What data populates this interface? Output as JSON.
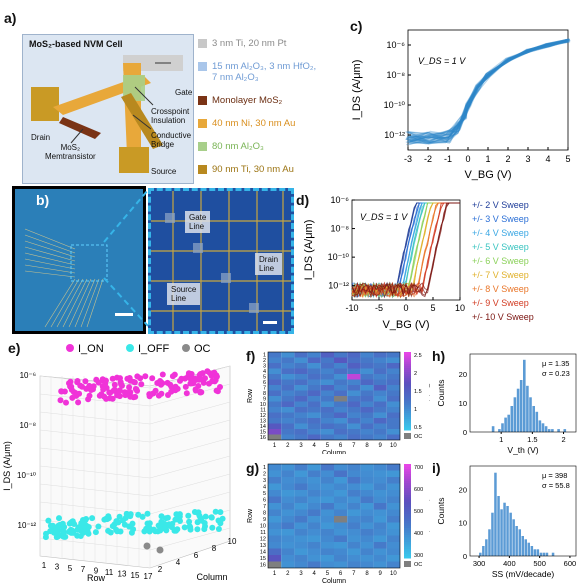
{
  "panel_labels": {
    "a": "a)",
    "b": "b)",
    "c": "c)",
    "d": "d)",
    "e": "e)",
    "f": "f)",
    "g": "g)",
    "h": "h)",
    "i": "i)"
  },
  "panel_a": {
    "title": "MoS₂-based NVM Cell",
    "labels": {
      "gate": "Gate",
      "drain": "Drain",
      "crosspoint": "Crosspoint",
      "insulation": "Insulation",
      "conductive": "Conductive",
      "bridge": "Bridge",
      "memtransistor_1": "MoS₂",
      "memtransistor_2": "Memtransistor",
      "source": "Source"
    },
    "materials": [
      {
        "lines": [
          "3 nm Ti, 20 nm Pt"
        ],
        "color": "#c8c8c8",
        "text_color": "#8a8a8a"
      },
      {
        "lines": [
          "15 nm Al₂O₃, 3 nm HfO₂,",
          "7 nm Al₂O₃"
        ],
        "color": "#a9c6ea",
        "text_color": "#6f9bd4"
      },
      {
        "lines": [
          "Monolayer MoS₂"
        ],
        "color": "#7a3315",
        "text_color": "#6b2e12"
      },
      {
        "lines": [
          "40 nm Ni, 30 nm Au"
        ],
        "color": "#e8a83a",
        "text_color": "#d98f1e"
      },
      {
        "lines": [
          "80 nm Al₂O₃"
        ],
        "color": "#a8cf8a",
        "text_color": "#79b455"
      },
      {
        "lines": [
          "90 nm Ti, 30 nm Au"
        ],
        "color": "#b8891f",
        "text_color": "#9c7413"
      }
    ]
  },
  "panel_b": {
    "labels": {
      "gate_1": "Gate",
      "gate_2": "Line",
      "drain_1": "Drain",
      "drain_2": "Line",
      "source_1": "Source",
      "source_2": "Line"
    }
  },
  "chart_data": [
    {
      "id": "c",
      "type": "line",
      "title": "",
      "xlabel": "V_BG (V)",
      "ylabel": "I_DS (A/μm)",
      "annotation": "V_DS = 1 V",
      "xlim": [
        -3,
        5
      ],
      "ylim_log10": [
        -13,
        -5
      ],
      "xticks": [
        "-3",
        "-2",
        "-1",
        "0",
        "1",
        "2",
        "3",
        "4",
        "5"
      ],
      "yticks": [
        "10⁻⁶",
        "10⁻⁸",
        "10⁻¹⁰",
        "10⁻¹²"
      ],
      "series": [
        {
          "x": [
            -3,
            -2,
            -1,
            -0.5,
            -0.2,
            0,
            0.5,
            1,
            2,
            3,
            4,
            5
          ],
          "log10_y": [
            -12.2,
            -12.2,
            -12.1,
            -11.5,
            -10.8,
            -10.0,
            -8.8,
            -8.0,
            -7.0,
            -6.4,
            -6.0,
            -5.7
          ]
        }
      ],
      "color": "#2f86c8"
    },
    {
      "id": "d",
      "type": "line",
      "title": "",
      "xlabel": "V_BG (V)",
      "ylabel": "I_DS (A/μm)",
      "annotation": "V_DS = 1 V",
      "xlim": [
        -10,
        10
      ],
      "ylim_log10": [
        -13,
        -6
      ],
      "xticks": [
        "-10",
        "-5",
        "0",
        "5",
        "10"
      ],
      "yticks": [
        "10⁻⁶",
        "10⁻⁸",
        "10⁻¹⁰",
        "10⁻¹²"
      ],
      "series": [
        {
          "name": "+/- 2 V Sweep",
          "color": "#1f3d99",
          "vth": -1.8
        },
        {
          "name": "+/- 3 V Sweep",
          "color": "#2b6fd6",
          "vth": -1.3
        },
        {
          "name": "+/- 4 V Sweep",
          "color": "#3aa7e3",
          "vth": -0.8
        },
        {
          "name": "+/- 5 V Sweep",
          "color": "#39c4c0",
          "vth": -0.3
        },
        {
          "name": "+/- 6 V Sweep",
          "color": "#8bd15a",
          "vth": 0.4
        },
        {
          "name": "+/- 7 V Sweep",
          "color": "#e0b12b",
          "vth": 1.2
        },
        {
          "name": "+/- 8 V Sweep",
          "color": "#e9762a",
          "vth": 2.1
        },
        {
          "name": "+/- 9 V Sweep",
          "color": "#d23b22",
          "vth": 3.0
        },
        {
          "name": "+/- 10 V Sweep",
          "color": "#7a1410",
          "vth": 4.0
        }
      ]
    },
    {
      "id": "e",
      "type": "scatter",
      "legend": [
        "I_ON",
        "I_OFF",
        "OC"
      ],
      "legend_colors": [
        "#f033d8",
        "#3ae8e8",
        "#8a8a8a"
      ],
      "zlabel": "I_DS (A/μm)",
      "xlabel": "Row",
      "ylabel": "Column",
      "zticks": [
        "10⁻⁶",
        "10⁻⁸",
        "10⁻¹⁰",
        "10⁻¹²"
      ],
      "xticks": [
        "1",
        "3",
        "5",
        "7",
        "9",
        "11",
        "13",
        "15",
        "17"
      ],
      "yticks": [
        "2",
        "4",
        "6",
        "8",
        "10"
      ],
      "ion_log10_approx": -6.4,
      "ioff_log10_approx": -12.4
    },
    {
      "id": "f",
      "type": "heatmap",
      "xlabel": "Column",
      "ylabel": "Row",
      "colorbar_label": "V_th (V)",
      "colorbar_ticks": [
        "2.5",
        "2",
        "1.5",
        "1",
        "0.5"
      ],
      "colorbar_range": [
        0.5,
        2.5
      ],
      "oc_label": "OC",
      "columns": [
        "1",
        "2",
        "3",
        "4",
        "5",
        "6",
        "7",
        "8",
        "9",
        "10"
      ],
      "rows": [
        "1",
        "2",
        "3",
        "4",
        "5",
        "6",
        "7",
        "8",
        "9",
        "10",
        "11",
        "12",
        "13",
        "14",
        "15",
        "16"
      ],
      "values": [
        [
          1.2,
          1.0,
          1.3,
          1.1,
          1.5,
          1.2,
          1.4,
          1.1,
          1.3,
          1.2
        ],
        [
          1.1,
          1.2,
          1.0,
          1.4,
          1.2,
          1.6,
          1.3,
          1.2,
          1.1,
          1.0
        ],
        [
          1.3,
          1.1,
          1.2,
          1.0,
          1.3,
          1.1,
          1.5,
          1.3,
          1.2,
          1.4
        ],
        [
          1.0,
          1.3,
          1.4,
          1.2,
          1.1,
          1.3,
          1.2,
          1.0,
          1.3,
          1.1
        ],
        [
          1.2,
          1.0,
          1.1,
          1.3,
          1.2,
          1.0,
          2.3,
          1.2,
          1.1,
          1.2
        ],
        [
          1.4,
          1.2,
          1.3,
          1.1,
          1.0,
          1.2,
          1.1,
          1.4,
          1.2,
          1.3
        ],
        [
          1.1,
          1.3,
          1.0,
          1.2,
          1.4,
          1.1,
          1.3,
          1.0,
          1.5,
          1.1
        ],
        [
          1.3,
          1.1,
          1.2,
          1.4,
          1.1,
          1.3,
          1.0,
          1.2,
          1.1,
          1.2
        ],
        [
          1.0,
          1.2,
          1.4,
          1.1,
          1.2,
          -1,
          1.2,
          1.3,
          1.0,
          1.3
        ],
        [
          1.2,
          1.4,
          1.1,
          1.3,
          1.0,
          1.2,
          1.4,
          1.1,
          1.3,
          1.0
        ],
        [
          1.1,
          1.0,
          1.3,
          1.2,
          1.3,
          1.1,
          1.2,
          1.4,
          1.2,
          1.1
        ],
        [
          1.3,
          1.2,
          1.1,
          1.0,
          1.2,
          1.4,
          1.1,
          1.2,
          1.0,
          1.3
        ],
        [
          1.2,
          1.1,
          1.2,
          1.3,
          1.1,
          1.0,
          1.3,
          1.1,
          1.4,
          1.2
        ],
        [
          1.6,
          1.3,
          1.0,
          1.2,
          1.3,
          1.2,
          1.0,
          1.3,
          1.1,
          1.2
        ],
        [
          1.9,
          1.2,
          1.3,
          1.1,
          1.0,
          1.3,
          1.2,
          1.1,
          1.2,
          1.0
        ],
        [
          -1,
          1.1,
          1.2,
          1.4,
          1.2,
          1.1,
          1.3,
          1.2,
          1.1,
          1.3
        ]
      ]
    },
    {
      "id": "g",
      "type": "heatmap",
      "xlabel": "Column",
      "ylabel": "Row",
      "colorbar_label": "SS (mV/decade)",
      "colorbar_ticks": [
        "700",
        "600",
        "500",
        "400",
        "300"
      ],
      "colorbar_range": [
        250,
        720
      ],
      "oc_label": "OC",
      "columns": [
        "1",
        "2",
        "3",
        "4",
        "5",
        "6",
        "7",
        "8",
        "9",
        "10"
      ],
      "rows": [
        "1",
        "2",
        "3",
        "4",
        "5",
        "6",
        "7",
        "8",
        "9",
        "10",
        "11",
        "12",
        "13",
        "14",
        "15",
        "16"
      ],
      "values": [
        [
          380,
          360,
          400,
          350,
          420,
          370,
          390,
          360,
          380,
          410
        ],
        [
          360,
          390,
          350,
          400,
          370,
          430,
          380,
          370,
          360,
          350
        ],
        [
          400,
          370,
          380,
          360,
          390,
          350,
          420,
          380,
          370,
          400
        ],
        [
          350,
          380,
          410,
          370,
          360,
          380,
          370,
          350,
          390,
          360
        ],
        [
          380,
          350,
          360,
          390,
          370,
          350,
          400,
          380,
          360,
          370
        ],
        [
          420,
          370,
          390,
          360,
          350,
          380,
          360,
          410,
          370,
          390
        ],
        [
          360,
          390,
          350,
          380,
          410,
          360,
          390,
          350,
          420,
          360
        ],
        [
          390,
          360,
          380,
          410,
          360,
          390,
          350,
          370,
          360,
          380
        ],
        [
          350,
          380,
          410,
          360,
          370,
          -1,
          380,
          390,
          350,
          400
        ],
        [
          380,
          410,
          360,
          390,
          350,
          370,
          400,
          360,
          390,
          350
        ],
        [
          360,
          350,
          390,
          370,
          390,
          360,
          370,
          400,
          380,
          360
        ],
        [
          390,
          370,
          360,
          350,
          380,
          410,
          360,
          380,
          350,
          390
        ],
        [
          380,
          360,
          370,
          390,
          360,
          350,
          390,
          360,
          410,
          370
        ],
        [
          450,
          390,
          350,
          370,
          390,
          380,
          350,
          390,
          360,
          380
        ],
        [
          520,
          370,
          390,
          360,
          350,
          390,
          370,
          360,
          380,
          350
        ],
        [
          -1,
          360,
          380,
          410,
          370,
          360,
          390,
          380,
          360,
          390
        ]
      ]
    },
    {
      "id": "h",
      "type": "bar",
      "xlabel": "V_th (V)",
      "ylabel": "Counts",
      "stat_mu": "μ = 1.35",
      "stat_sigma": "σ = 0.23",
      "xlim": [
        0.5,
        2.2
      ],
      "xticks": [
        "1",
        "1.5",
        "2"
      ],
      "yticks": [
        "0",
        "10",
        "20"
      ],
      "ylim": [
        0,
        27
      ],
      "bin_width": 0.05,
      "bin_starts": [
        0.85,
        0.9,
        0.95,
        1.0,
        1.05,
        1.1,
        1.15,
        1.2,
        1.25,
        1.3,
        1.35,
        1.4,
        1.45,
        1.5,
        1.55,
        1.6,
        1.65,
        1.7,
        1.75,
        1.8,
        1.85,
        1.9,
        1.95,
        2.0
      ],
      "values": [
        2,
        0,
        1,
        3,
        5,
        6,
        9,
        12,
        15,
        18,
        25,
        16,
        12,
        9,
        7,
        4,
        3,
        2,
        1,
        1,
        0,
        1,
        0,
        1
      ],
      "color": "#5b9bd5"
    },
    {
      "id": "i",
      "type": "bar",
      "xlabel": "SS (mV/decade)",
      "ylabel": "Counts",
      "stat_mu": "μ = 398",
      "stat_sigma": "σ = 55.8",
      "xlim": [
        270,
        620
      ],
      "xticks": [
        "300",
        "400",
        "500",
        "600"
      ],
      "yticks": [
        "0",
        "10",
        "20"
      ],
      "ylim": [
        0,
        27
      ],
      "bin_width": 10,
      "bin_starts": [
        300,
        310,
        320,
        330,
        340,
        350,
        360,
        370,
        380,
        390,
        400,
        410,
        420,
        430,
        440,
        450,
        460,
        470,
        480,
        490,
        500,
        510,
        520,
        530,
        540
      ],
      "values": [
        1,
        3,
        5,
        8,
        13,
        25,
        18,
        14,
        16,
        15,
        13,
        11,
        9,
        8,
        6,
        5,
        4,
        3,
        2,
        2,
        1,
        1,
        1,
        0,
        1
      ],
      "color": "#5b9bd5"
    }
  ]
}
